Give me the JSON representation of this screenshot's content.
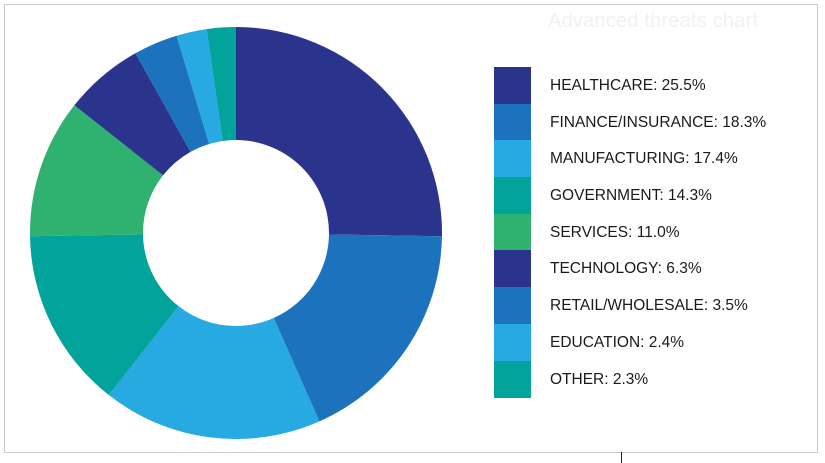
{
  "chart_data": {
    "type": "pie",
    "donut": true,
    "title": "Advanced threats chart",
    "categories": [
      "HEALTHCARE",
      "FINANCE/INSURANCE",
      "MANUFACTURING",
      "GOVERNMENT",
      "SERVICES",
      "TECHNOLOGY",
      "RETAIL/WHOLESALE",
      "EDUCATION",
      "OTHER"
    ],
    "values": [
      25.5,
      18.3,
      17.4,
      14.3,
      11.0,
      6.3,
      3.5,
      2.4,
      2.3
    ],
    "legend_labels": [
      "HEALTHCARE: 25.5%",
      "FINANCE/INSURANCE: 18.3%",
      "MANUFACTURING: 17.4%",
      "GOVERNMENT: 14.3%",
      "SERVICES: 11.0%",
      "TECHNOLOGY: 6.3%",
      "RETAIL/WHOLESALE: 3.5%",
      "EDUCATION: 2.4%",
      "OTHER: 2.3%"
    ],
    "colors": [
      "#2b348d",
      "#1d72bd",
      "#27a9e2",
      "#01a39a",
      "#2fb26f",
      "#2b348d",
      "#1d72bd",
      "#27a9e2",
      "#01a39a"
    ],
    "legend_position": "right"
  }
}
